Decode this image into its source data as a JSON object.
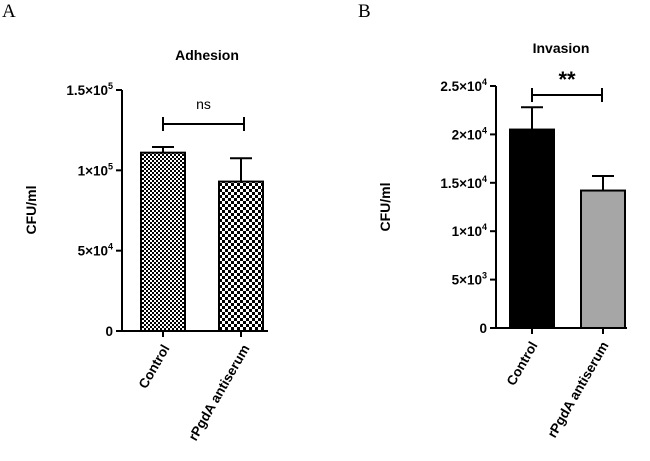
{
  "panels": [
    {
      "letter": "A"
    },
    {
      "letter": "B"
    }
  ],
  "chart_data": [
    {
      "type": "bar",
      "title": "Adhesion",
      "ylabel": "CFU/ml",
      "xlabel": "",
      "categories": [
        "Control",
        "rPgdA antiserum"
      ],
      "values": [
        111000,
        93000
      ],
      "error": [
        3500,
        14500
      ],
      "ylim": [
        0,
        150000
      ],
      "yticks": [
        0,
        50000,
        100000,
        150000
      ],
      "ytick_labels": [
        {
          "base": "0",
          "exp": ""
        },
        {
          "base": "5×10",
          "exp": "4"
        },
        {
          "base": "1×10",
          "exp": "5"
        },
        {
          "base": "1.5×10",
          "exp": "5"
        }
      ],
      "fills": [
        "checker-small",
        "checker-large"
      ],
      "significance": {
        "text": "ns",
        "between": [
          0,
          1
        ]
      }
    },
    {
      "type": "bar",
      "title": "Invasion",
      "ylabel": "CFU/ml",
      "xlabel": "",
      "categories": [
        "Control",
        "rPgdA antiserum"
      ],
      "values": [
        20500,
        14200
      ],
      "error": [
        2300,
        1500
      ],
      "ylim": [
        0,
        25000
      ],
      "yticks": [
        0,
        5000,
        10000,
        15000,
        20000,
        25000
      ],
      "ytick_labels": [
        {
          "base": "0",
          "exp": ""
        },
        {
          "base": "5×10",
          "exp": "3"
        },
        {
          "base": "1×10",
          "exp": "4"
        },
        {
          "base": "1.5×10",
          "exp": "4"
        },
        {
          "base": "2×10",
          "exp": "4"
        },
        {
          "base": "2.5×10",
          "exp": "4"
        }
      ],
      "fills": [
        "#000000",
        "#a6a6a6"
      ],
      "significance": {
        "text": "**",
        "between": [
          0,
          1
        ]
      }
    }
  ]
}
